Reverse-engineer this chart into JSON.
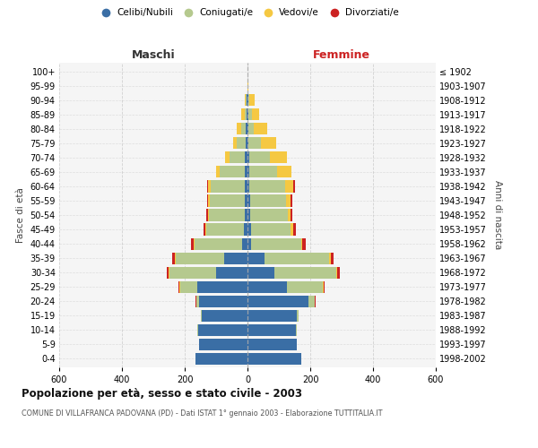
{
  "age_groups": [
    "0-4",
    "5-9",
    "10-14",
    "15-19",
    "20-24",
    "25-29",
    "30-34",
    "35-39",
    "40-44",
    "45-49",
    "50-54",
    "55-59",
    "60-64",
    "65-69",
    "70-74",
    "75-79",
    "80-84",
    "85-89",
    "90-94",
    "95-99",
    "100+"
  ],
  "birth_years": [
    "1998-2002",
    "1993-1997",
    "1988-1992",
    "1983-1987",
    "1978-1982",
    "1973-1977",
    "1968-1972",
    "1963-1967",
    "1958-1962",
    "1953-1957",
    "1948-1952",
    "1943-1947",
    "1938-1942",
    "1933-1937",
    "1928-1932",
    "1923-1927",
    "1918-1922",
    "1913-1917",
    "1908-1912",
    "1903-1907",
    "≤ 1902"
  ],
  "colors": {
    "celibe": "#3a6ea5",
    "coniugato": "#b5c98e",
    "vedovo": "#f5c842",
    "divorziato": "#cc2222"
  },
  "males": {
    "celibe": [
      165,
      155,
      158,
      145,
      155,
      160,
      100,
      75,
      18,
      12,
      10,
      10,
      10,
      10,
      8,
      5,
      5,
      3,
      2,
      0,
      0
    ],
    "coniugato": [
      0,
      0,
      2,
      5,
      8,
      55,
      150,
      155,
      150,
      120,
      112,
      110,
      108,
      80,
      50,
      28,
      15,
      7,
      3,
      0,
      0
    ],
    "vedovo": [
      0,
      0,
      0,
      0,
      0,
      2,
      2,
      2,
      3,
      3,
      4,
      5,
      8,
      10,
      14,
      14,
      14,
      10,
      4,
      1,
      0
    ],
    "divorziato": [
      0,
      0,
      0,
      0,
      2,
      2,
      5,
      8,
      8,
      5,
      5,
      4,
      2,
      1,
      0,
      0,
      0,
      0,
      0,
      0,
      0
    ]
  },
  "females": {
    "nubile": [
      172,
      158,
      155,
      158,
      195,
      125,
      85,
      55,
      12,
      10,
      8,
      8,
      7,
      5,
      5,
      4,
      3,
      3,
      2,
      0,
      0
    ],
    "coniugata": [
      0,
      0,
      2,
      5,
      18,
      115,
      198,
      205,
      158,
      128,
      120,
      115,
      112,
      90,
      65,
      38,
      18,
      10,
      5,
      1,
      0
    ],
    "vedova": [
      0,
      0,
      0,
      0,
      2,
      2,
      3,
      5,
      5,
      8,
      10,
      14,
      28,
      45,
      55,
      50,
      42,
      25,
      15,
      2,
      1
    ],
    "divorziata": [
      0,
      0,
      0,
      0,
      2,
      4,
      7,
      10,
      10,
      8,
      6,
      5,
      3,
      1,
      0,
      0,
      0,
      0,
      0,
      0,
      0
    ]
  },
  "xlim": 600,
  "title": "Popolazione per età, sesso e stato civile - 2003",
  "subtitle": "COMUNE DI VILLAFRANCA PADOVANA (PD) - Dati ISTAT 1° gennaio 2003 - Elaborazione TUTTITALIA.IT",
  "ylabel_left": "Fasce di età",
  "ylabel_right": "Anni di nascita",
  "xlabel_left": "Maschi",
  "xlabel_right": "Femmine"
}
